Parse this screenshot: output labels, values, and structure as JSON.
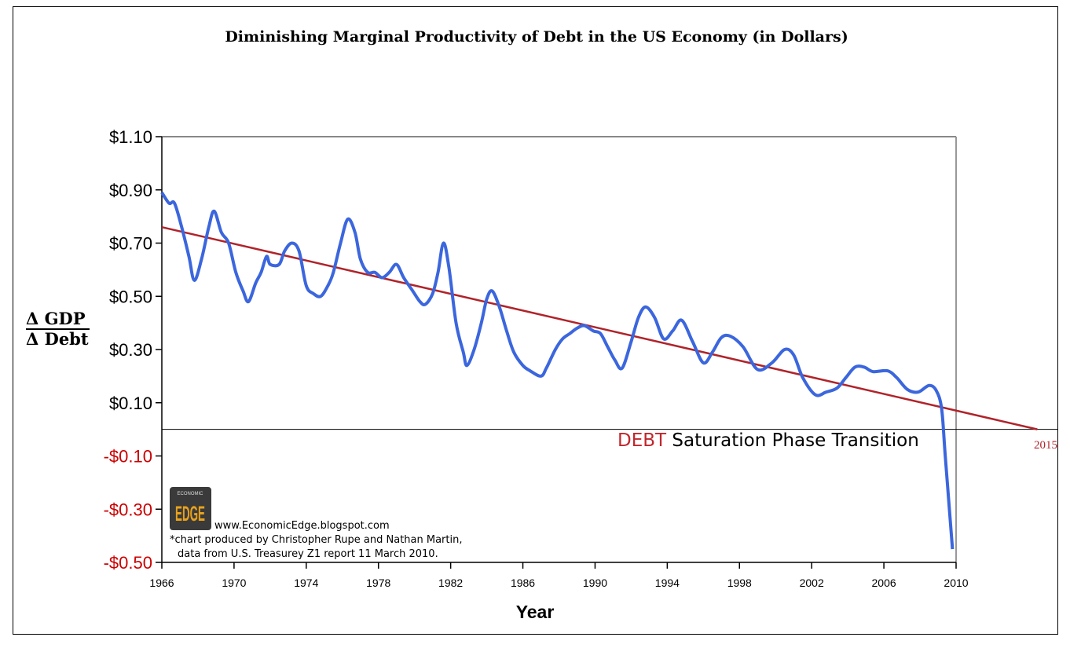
{
  "chart_data": {
    "type": "line",
    "title": "Diminishing Marginal Productivity of Debt in the US Economy  (in Dollars)",
    "xlabel": "Year",
    "ylabel_numerator": "Δ GDP",
    "ylabel_denominator": "Δ Debt",
    "xlim": [
      1966,
      2010
    ],
    "ylim": [
      -0.5,
      1.1
    ],
    "x_ticks": [
      "1966",
      "1970",
      "1974",
      "1978",
      "1982",
      "1986",
      "1990",
      "1994",
      "1998",
      "2002",
      "2006",
      "2010"
    ],
    "y_ticks": [
      {
        "value": 1.1,
        "label": "$1.10"
      },
      {
        "value": 0.9,
        "label": "$0.90"
      },
      {
        "value": 0.7,
        "label": "$0.70"
      },
      {
        "value": 0.5,
        "label": "$0.50"
      },
      {
        "value": 0.3,
        "label": "$0.30"
      },
      {
        "value": 0.1,
        "label": "$0.10"
      },
      {
        "value": -0.1,
        "label": "-$0.10"
      },
      {
        "value": -0.3,
        "label": "-$0.30"
      },
      {
        "value": -0.5,
        "label": "-$0.50"
      }
    ],
    "grid": false,
    "series": [
      {
        "color": "#3b66dd",
        "points": [
          [
            1966.0,
            0.89
          ],
          [
            1966.4,
            0.85
          ],
          [
            1966.7,
            0.85
          ],
          [
            1967.1,
            0.76
          ],
          [
            1967.5,
            0.65
          ],
          [
            1967.8,
            0.56
          ],
          [
            1968.2,
            0.64
          ],
          [
            1968.6,
            0.76
          ],
          [
            1968.9,
            0.82
          ],
          [
            1969.3,
            0.74
          ],
          [
            1969.7,
            0.7
          ],
          [
            1970.1,
            0.59
          ],
          [
            1970.5,
            0.52
          ],
          [
            1970.8,
            0.48
          ],
          [
            1971.2,
            0.55
          ],
          [
            1971.5,
            0.59
          ],
          [
            1971.8,
            0.65
          ],
          [
            1972.0,
            0.62
          ],
          [
            1972.5,
            0.62
          ],
          [
            1972.8,
            0.67
          ],
          [
            1973.2,
            0.7
          ],
          [
            1973.6,
            0.67
          ],
          [
            1974.0,
            0.54
          ],
          [
            1974.4,
            0.51
          ],
          [
            1974.8,
            0.5
          ],
          [
            1975.2,
            0.54
          ],
          [
            1975.5,
            0.59
          ],
          [
            1975.9,
            0.7
          ],
          [
            1976.3,
            0.79
          ],
          [
            1976.7,
            0.74
          ],
          [
            1977.0,
            0.64
          ],
          [
            1977.4,
            0.59
          ],
          [
            1977.8,
            0.59
          ],
          [
            1978.2,
            0.57
          ],
          [
            1978.6,
            0.59
          ],
          [
            1979.0,
            0.62
          ],
          [
            1979.4,
            0.57
          ],
          [
            1979.9,
            0.52
          ],
          [
            1980.3,
            0.48
          ],
          [
            1980.6,
            0.47
          ],
          [
            1981.0,
            0.51
          ],
          [
            1981.3,
            0.59
          ],
          [
            1981.6,
            0.7
          ],
          [
            1981.9,
            0.61
          ],
          [
            1982.3,
            0.4
          ],
          [
            1982.7,
            0.29
          ],
          [
            1982.9,
            0.24
          ],
          [
            1983.3,
            0.3
          ],
          [
            1983.7,
            0.4
          ],
          [
            1984.0,
            0.49
          ],
          [
            1984.3,
            0.52
          ],
          [
            1984.7,
            0.46
          ],
          [
            1985.1,
            0.37
          ],
          [
            1985.5,
            0.29
          ],
          [
            1986.0,
            0.24
          ],
          [
            1986.4,
            0.22
          ],
          [
            1987.0,
            0.2
          ],
          [
            1987.3,
            0.23
          ],
          [
            1987.8,
            0.3
          ],
          [
            1988.2,
            0.34
          ],
          [
            1988.6,
            0.36
          ],
          [
            1989.0,
            0.38
          ],
          [
            1989.4,
            0.39
          ],
          [
            1989.9,
            0.37
          ],
          [
            1990.3,
            0.36
          ],
          [
            1990.7,
            0.31
          ],
          [
            1991.1,
            0.26
          ],
          [
            1991.5,
            0.23
          ],
          [
            1992.0,
            0.33
          ],
          [
            1992.4,
            0.42
          ],
          [
            1992.8,
            0.46
          ],
          [
            1993.3,
            0.42
          ],
          [
            1993.8,
            0.34
          ],
          [
            1994.3,
            0.37
          ],
          [
            1994.8,
            0.41
          ],
          [
            1995.4,
            0.33
          ],
          [
            1996.0,
            0.25
          ],
          [
            1996.5,
            0.29
          ],
          [
            1997.0,
            0.345
          ],
          [
            1997.5,
            0.35
          ],
          [
            1998.2,
            0.31
          ],
          [
            1999.0,
            0.225
          ],
          [
            1999.8,
            0.25
          ],
          [
            2000.5,
            0.3
          ],
          [
            2001.0,
            0.28
          ],
          [
            2001.5,
            0.195
          ],
          [
            2002.2,
            0.13
          ],
          [
            2002.8,
            0.14
          ],
          [
            2003.4,
            0.155
          ],
          [
            2003.9,
            0.195
          ],
          [
            2004.4,
            0.234
          ],
          [
            2004.9,
            0.234
          ],
          [
            2005.4,
            0.217
          ],
          [
            2006.2,
            0.22
          ],
          [
            2006.7,
            0.195
          ],
          [
            2007.3,
            0.15
          ],
          [
            2007.9,
            0.14
          ],
          [
            2008.5,
            0.165
          ],
          [
            2008.9,
            0.146
          ],
          [
            2009.2,
            0.077
          ],
          [
            2009.4,
            -0.1
          ],
          [
            2009.8,
            -0.45
          ]
        ]
      }
    ],
    "trendline": {
      "color": "#b0232a",
      "start": [
        1966,
        0.76
      ],
      "end": [
        2014.5,
        0.0
      ],
      "end_label": "2015"
    },
    "zero_line": true,
    "annotation": {
      "highlight": "DEBT",
      "text": " Saturation Phase Transition",
      "highlight_color": "#c0272d"
    },
    "negative_label_color": "#cc0000"
  },
  "credits": {
    "logo_top": "ECONOMIC",
    "logo_main": "EDGE",
    "url": "www.EconomicEdge.blogspot.com",
    "line1": "*chart produced by Christopher Rupe and Nathan Martin,",
    "line2": "data from U.S. Treasurey Z1 report 11 March 2010."
  }
}
